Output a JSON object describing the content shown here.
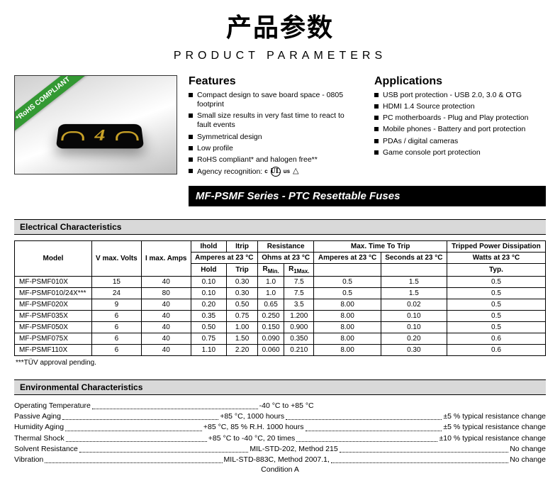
{
  "title_cn": "产品参数",
  "title_en": "PRODUCT PARAMETERS",
  "rohs_badge": "*RoHS COMPLIANT",
  "chip_mark": "4",
  "features": {
    "heading": "Features",
    "items": [
      "Compact design to save board space - 0805 footprint",
      "Small size results in very fast time to react to fault events",
      "Symmetrical design",
      "Low profile",
      "RoHS compliant* and halogen free**",
      "Agency recognition:"
    ]
  },
  "agency": {
    "c_prefix": "c",
    "ul": "UL",
    "us_suffix": "us",
    "tri": "△"
  },
  "applications": {
    "heading": "Applications",
    "items": [
      "USB port protection - USB 2.0, 3.0 & OTG",
      "HDMI 1.4 Source protection",
      "PC motherboards - Plug and Play protection",
      "Mobile phones - Battery and port protection",
      "PDAs / digital cameras",
      "Game console port protection"
    ]
  },
  "series_bar": "MF-PSMF Series - PTC Resettable Fuses",
  "section_electrical": "Electrical Characteristics",
  "table": {
    "head": {
      "model": "Model",
      "vmax": "V max. Volts",
      "imax": "I max. Amps",
      "ihold": "Ihold",
      "itrip": "Itrip",
      "resistance": "Resistance",
      "maxtime": "Max. Time To Trip",
      "tpd": "Tripped Power Dissipation",
      "amps23": "Amperes at 23 °C",
      "ohms23": "Ohms at 23 °C",
      "sec23": "Seconds at 23 °C",
      "watts23": "Watts at 23 °C",
      "hold": "Hold",
      "trip": "Trip",
      "rmin": "RMin.",
      "rmax": "R1Max.",
      "typ": "Typ."
    },
    "rows": [
      {
        "model": "MF-PSMF010X",
        "v": "15",
        "i": "40",
        "hold": "0.10",
        "trip": "0.30",
        "rmin": "1.0",
        "rmax": "7.5",
        "ta": "0.5",
        "ts": "1.5",
        "typ": "0.5"
      },
      {
        "model": "MF-PSMF010/24X***",
        "v": "24",
        "i": "80",
        "hold": "0.10",
        "trip": "0.30",
        "rmin": "1.0",
        "rmax": "7.5",
        "ta": "0.5",
        "ts": "1.5",
        "typ": "0.5"
      },
      {
        "model": "MF-PSMF020X",
        "v": "9",
        "i": "40",
        "hold": "0.20",
        "trip": "0.50",
        "rmin": "0.65",
        "rmax": "3.5",
        "ta": "8.00",
        "ts": "0.02",
        "typ": "0.5"
      },
      {
        "model": "MF-PSMF035X",
        "v": "6",
        "i": "40",
        "hold": "0.35",
        "trip": "0.75",
        "rmin": "0.250",
        "rmax": "1.200",
        "ta": "8.00",
        "ts": "0.10",
        "typ": "0.5"
      },
      {
        "model": "MF-PSMF050X",
        "v": "6",
        "i": "40",
        "hold": "0.50",
        "trip": "1.00",
        "rmin": "0.150",
        "rmax": "0.900",
        "ta": "8.00",
        "ts": "0.10",
        "typ": "0.5"
      },
      {
        "model": "MF-PSMF075X",
        "v": "6",
        "i": "40",
        "hold": "0.75",
        "trip": "1.50",
        "rmin": "0.090",
        "rmax": "0.350",
        "ta": "8.00",
        "ts": "0.20",
        "typ": "0.6"
      },
      {
        "model": "MF-PSMF110X",
        "v": "6",
        "i": "40",
        "hold": "1.10",
        "trip": "2.20",
        "rmin": "0.060",
        "rmax": "0.210",
        "ta": "8.00",
        "ts": "0.30",
        "typ": "0.6"
      }
    ]
  },
  "footnote": "***TÜV approval pending.",
  "section_env": "Environmental Characteristics",
  "env": [
    {
      "label": "Operating Temperature",
      "val": "-40 °C to +85 °C",
      "change": ""
    },
    {
      "label": "Passive Aging",
      "val": "+85 °C, 1000 hours",
      "change": "±5 % typical resistance change"
    },
    {
      "label": "Humidity Aging",
      "val": "+85 °C, 85 % R.H. 1000 hours",
      "change": "±5 % typical resistance change"
    },
    {
      "label": "Thermal Shock",
      "val": "+85 °C to -40 °C, 20 times",
      "change": "±10 % typical resistance change"
    },
    {
      "label": "Solvent Resistance",
      "val": "MIL-STD-202, Method 215",
      "change": "No change"
    },
    {
      "label": "Vibration",
      "val": "MIL-STD-883C, Method 2007.1,",
      "change": "No change"
    }
  ],
  "condition": "Condition A"
}
